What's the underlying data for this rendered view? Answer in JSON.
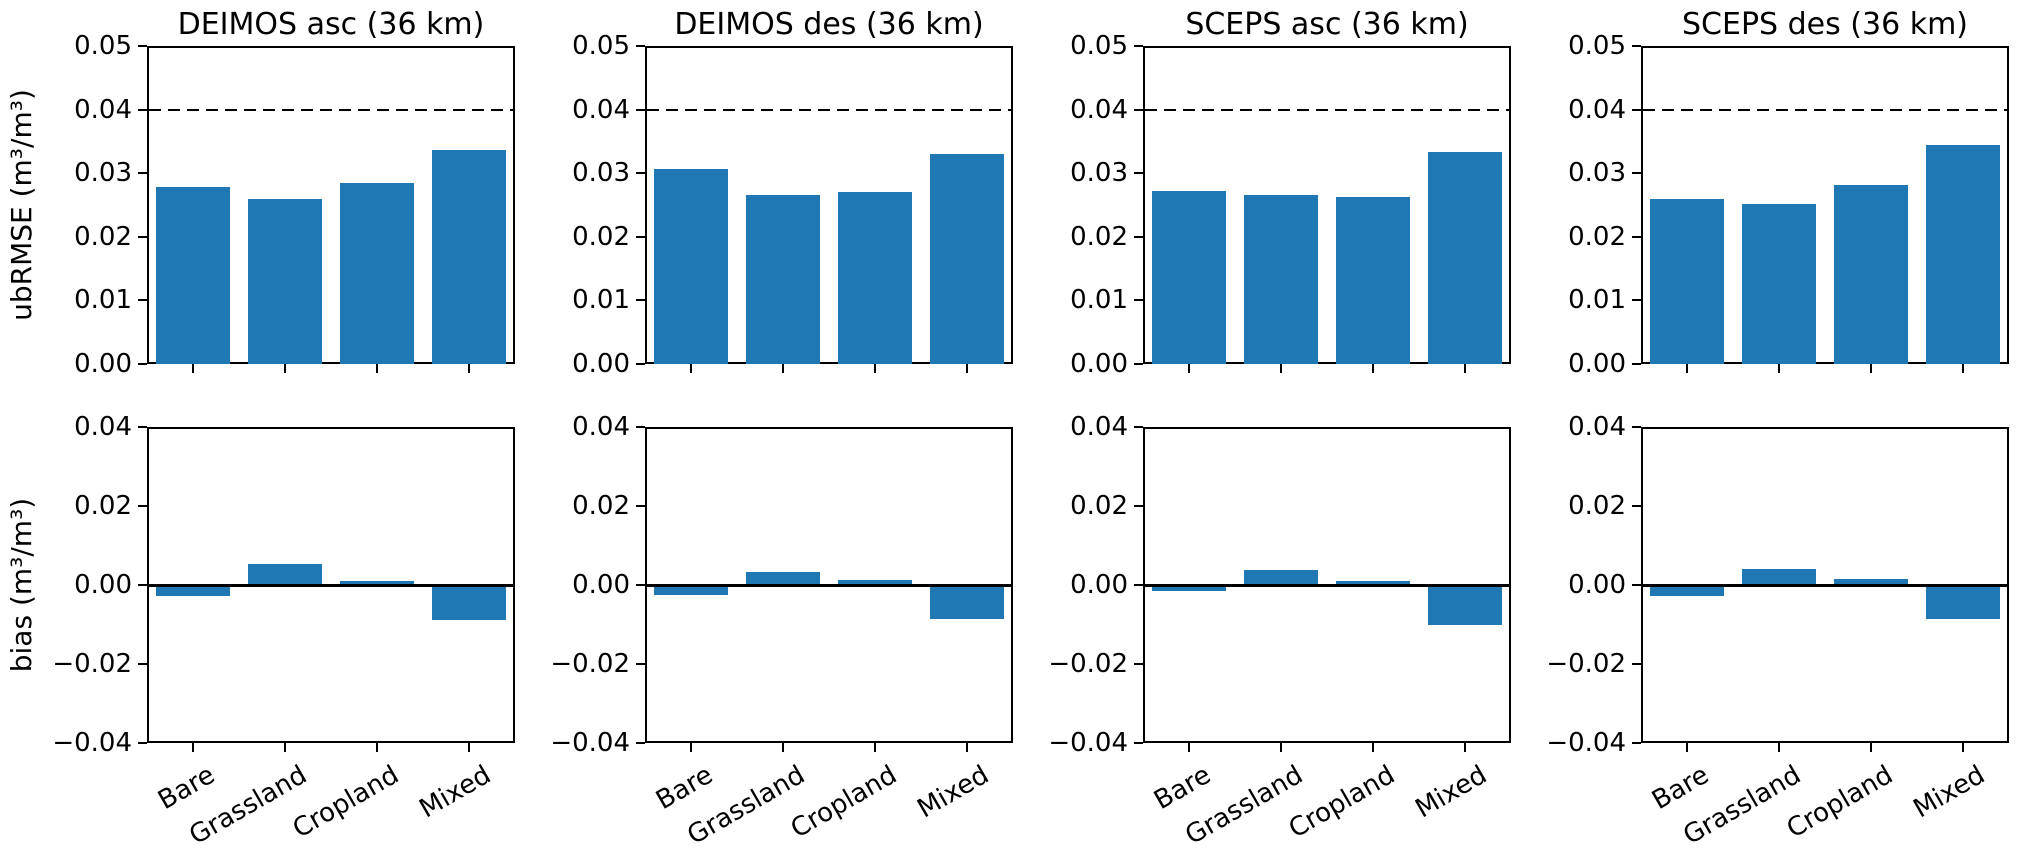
{
  "figure": {
    "background": "#ffffff",
    "axis_color": "#000000"
  },
  "chart_data": {
    "type": "bar",
    "grid": {
      "rows": 2,
      "cols": 4
    },
    "categories": [
      "Bare",
      "Grassland",
      "Cropland",
      "Mixed"
    ],
    "column_titles": [
      "DEIMOS asc (36 km)",
      "DEIMOS des (36 km)",
      "SCEPS asc (36 km)",
      "SCEPS des (36 km)"
    ],
    "bar_color": "#1f77b4",
    "rows": [
      {
        "ylabel": "ubRMSE (m³/m³)",
        "ylim": [
          0,
          0.05
        ],
        "ytick_values": [
          0,
          0.01,
          0.02,
          0.03,
          0.04,
          0.05
        ],
        "ytick_labels": [
          "0.00",
          "0.01",
          "0.02",
          "0.03",
          "0.04",
          "0.05"
        ],
        "dashed_reference_y": 0.04,
        "zero_line": false,
        "show_xtick_labels": false,
        "series": [
          {
            "name": "DEIMOS asc (36 km)",
            "values": [
              0.0278,
              0.0259,
              0.0285,
              0.0336
            ]
          },
          {
            "name": "DEIMOS des (36 km)",
            "values": [
              0.0306,
              0.0265,
              0.027,
              0.033
            ]
          },
          {
            "name": "SCEPS asc (36 km)",
            "values": [
              0.0272,
              0.0266,
              0.0262,
              0.0334
            ]
          },
          {
            "name": "SCEPS des (36 km)",
            "values": [
              0.026,
              0.0252,
              0.0282,
              0.0344
            ]
          }
        ]
      },
      {
        "ylabel": "bias (m³/m³)",
        "ylim": [
          -0.04,
          0.04
        ],
        "ytick_values": [
          -0.04,
          -0.02,
          0,
          0.02,
          0.04
        ],
        "ytick_labels": [
          "−0.04",
          "−0.02",
          "0.00",
          "0.02",
          "0.04"
        ],
        "dashed_reference_y": null,
        "zero_line": true,
        "show_xtick_labels": true,
        "series": [
          {
            "name": "DEIMOS asc (36 km)",
            "values": [
              -0.0028,
              0.0053,
              0.001,
              -0.0089
            ]
          },
          {
            "name": "DEIMOS des (36 km)",
            "values": [
              -0.0025,
              0.0034,
              0.0013,
              -0.0086
            ]
          },
          {
            "name": "SCEPS asc (36 km)",
            "values": [
              -0.0014,
              0.0037,
              0.001,
              -0.0101
            ]
          },
          {
            "name": "SCEPS des (36 km)",
            "values": [
              -0.0028,
              0.0041,
              0.0016,
              -0.0086
            ]
          }
        ]
      }
    ]
  }
}
